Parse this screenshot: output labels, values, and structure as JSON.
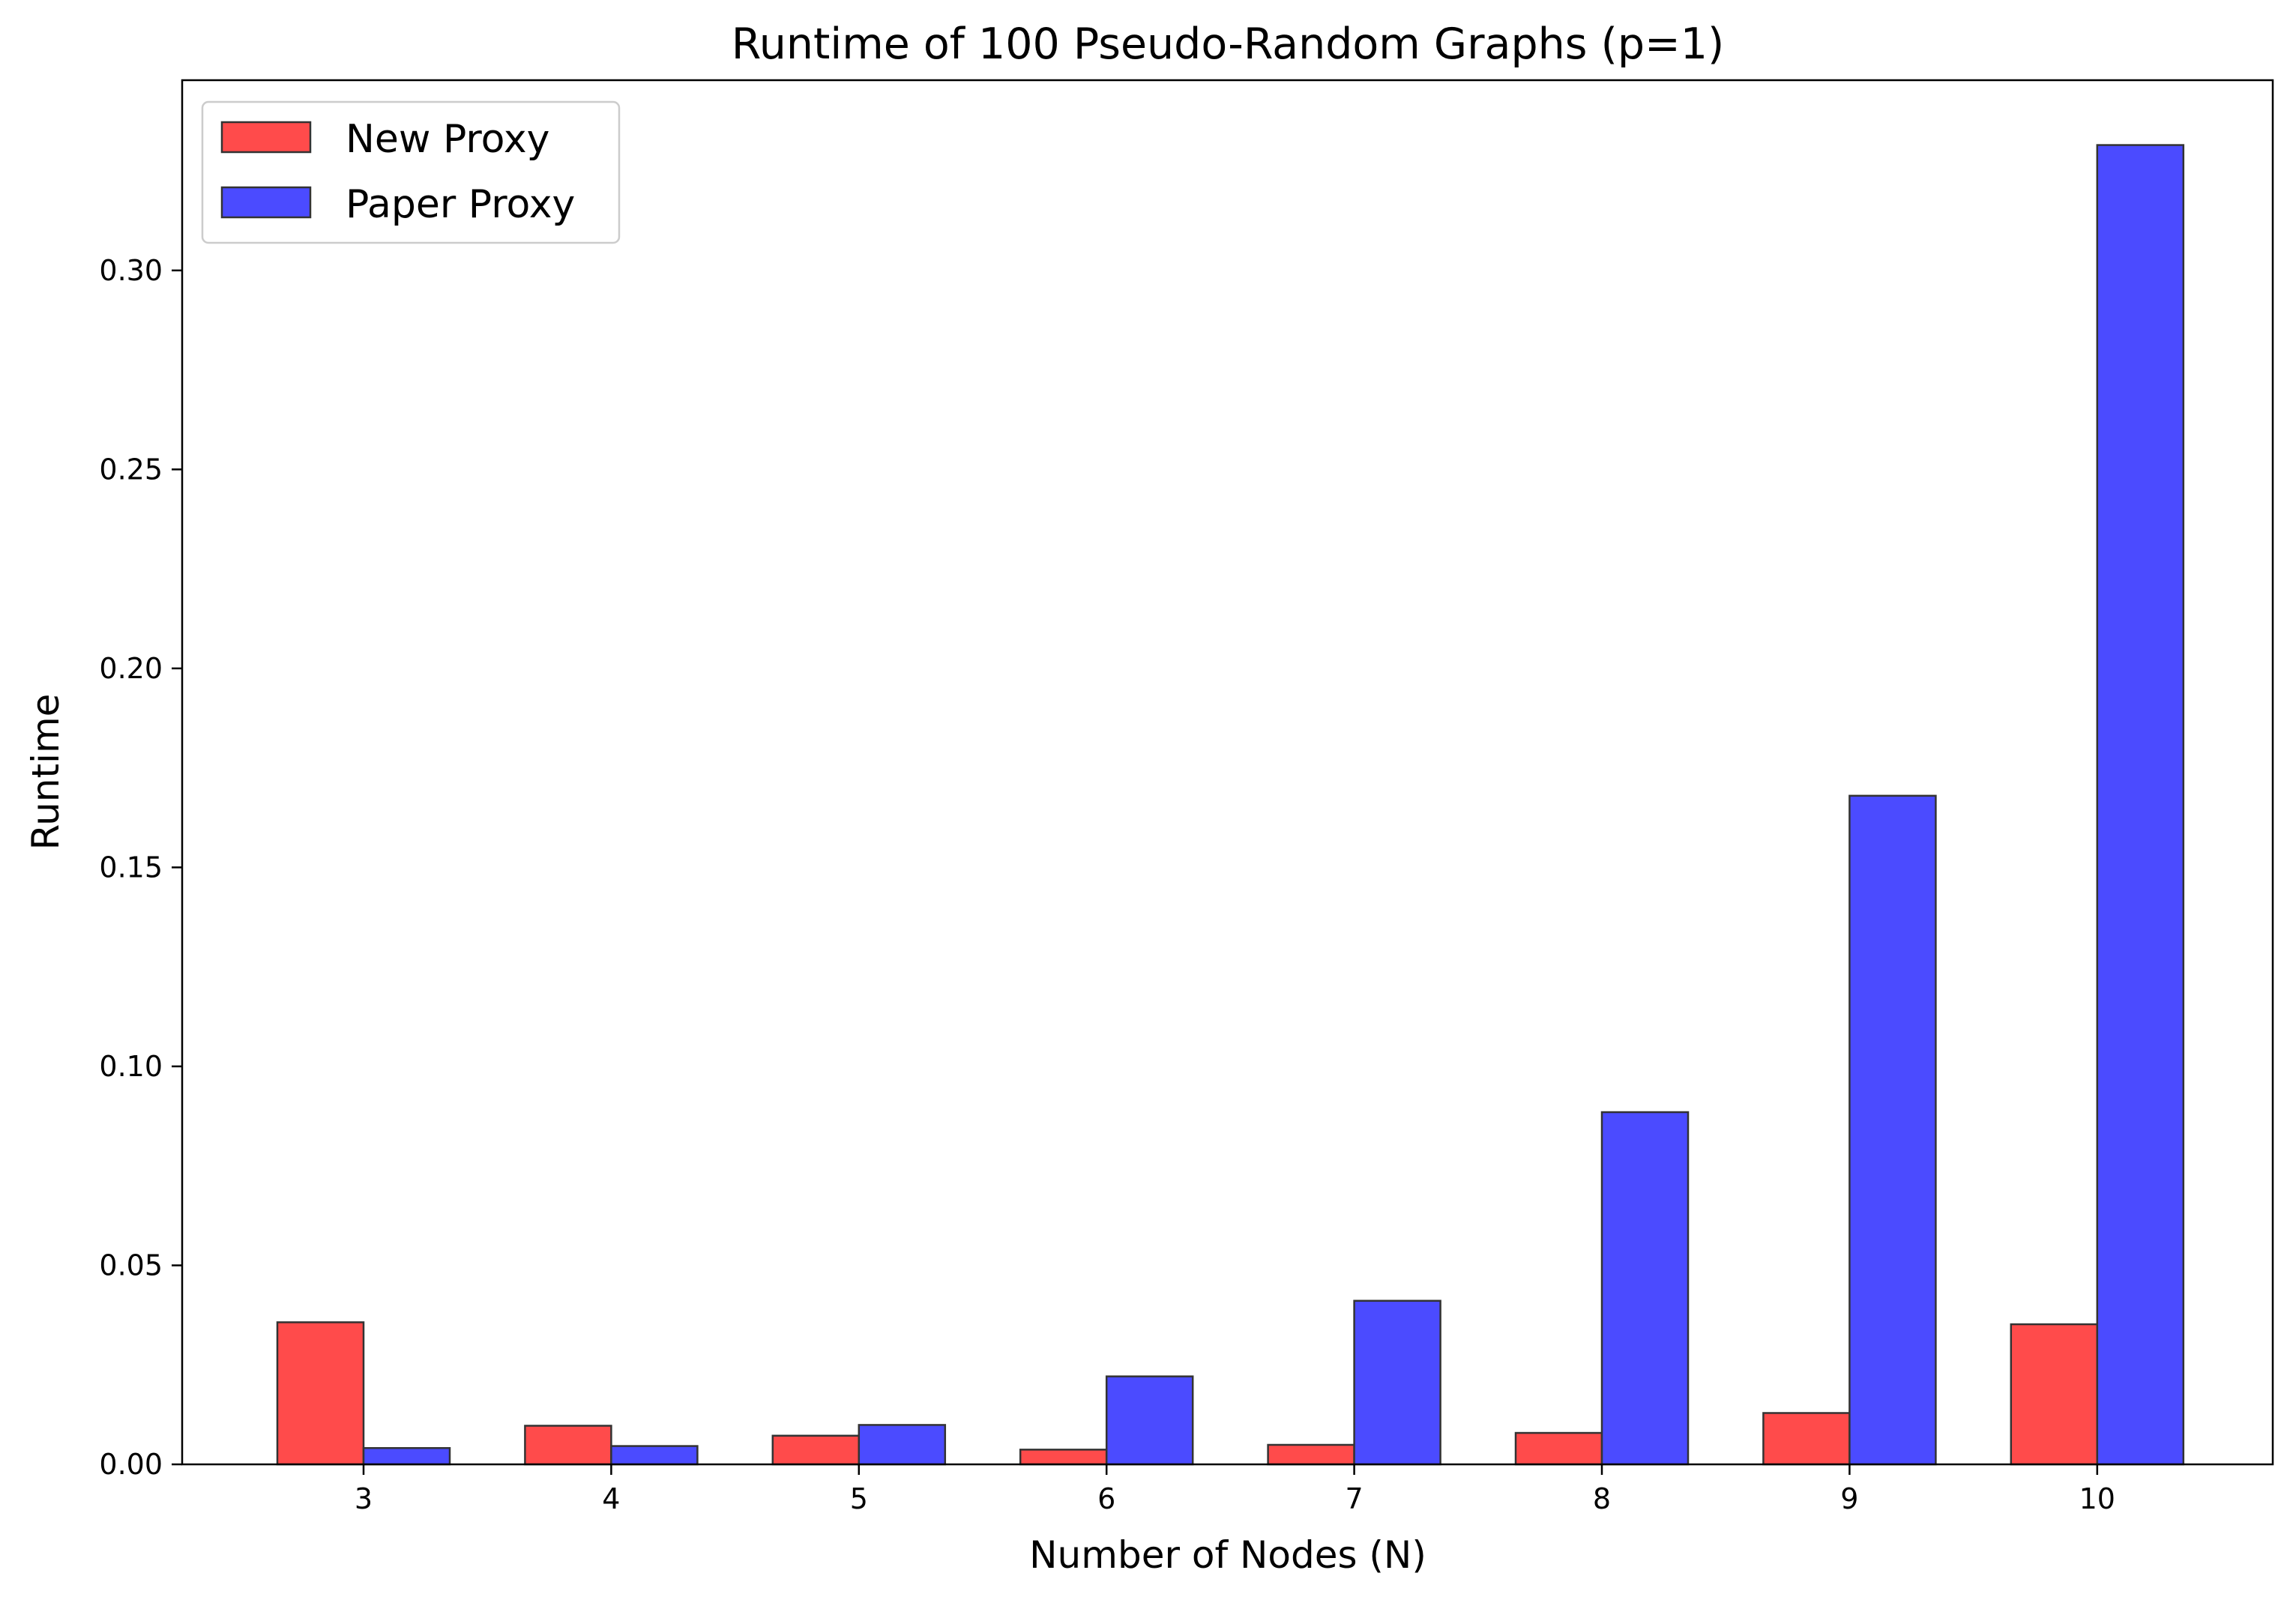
{
  "chart_data": {
    "type": "bar",
    "title": "Runtime of 100 Pseudo-Random Graphs (p=1)",
    "xlabel": "Number of Nodes (N)",
    "ylabel": "Runtime",
    "categories": [
      "3",
      "4",
      "5",
      "6",
      "7",
      "8",
      "9",
      "10"
    ],
    "series": [
      {
        "name": "New Proxy",
        "color": "#ff4b4b",
        "values": [
          0.0357,
          0.0097,
          0.0072,
          0.0037,
          0.0049,
          0.0079,
          0.0129,
          0.0352
        ]
      },
      {
        "name": "Paper Proxy",
        "color": "#4b4bff",
        "values": [
          0.0041,
          0.0046,
          0.0099,
          0.0221,
          0.0411,
          0.0885,
          0.168,
          0.3315
        ]
      }
    ],
    "ylim": [
      0,
      0.3478
    ],
    "yticks": [
      "0.00",
      "0.05",
      "0.10",
      "0.15",
      "0.20",
      "0.25",
      "0.30"
    ],
    "ytick_values": [
      0,
      0.05,
      0.1,
      0.15,
      0.2,
      0.25,
      0.3
    ],
    "legend_position": "upper-left",
    "grid": false
  }
}
